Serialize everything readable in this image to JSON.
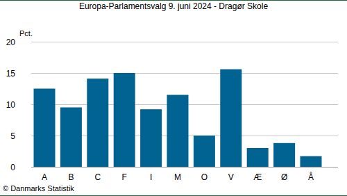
{
  "chart_data": {
    "type": "bar",
    "title": "Europa-Parlamentsvalg 9. juni 2024 - Dragør Skole",
    "y_label": "Pct.",
    "source": "© Danmarks Statistik",
    "categories": [
      "A",
      "B",
      "C",
      "F",
      "I",
      "M",
      "O",
      "V",
      "Æ",
      "Ø",
      "Å"
    ],
    "values": [
      12.5,
      9.5,
      14.1,
      15.0,
      9.2,
      11.5,
      5.0,
      15.6,
      3.0,
      3.8,
      1.7
    ],
    "color": "#006391",
    "ylim": [
      0,
      20
    ],
    "yticks": [
      0,
      5,
      10,
      15,
      20
    ],
    "grid": true
  }
}
